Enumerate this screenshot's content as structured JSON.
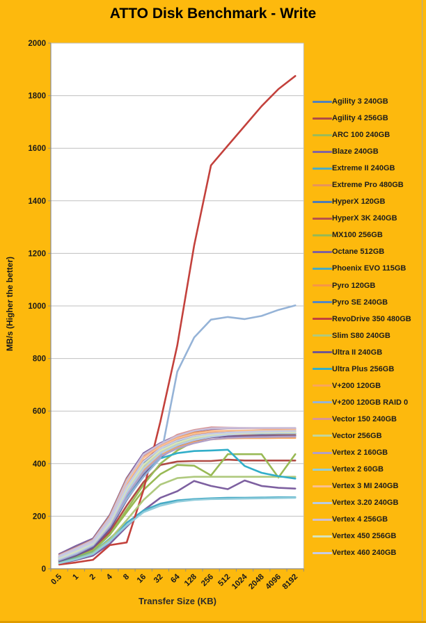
{
  "chart_data": {
    "type": "line",
    "title": "ATTO Disk Benchmark - Write",
    "xlabel": "Transfer Size (KB)",
    "ylabel": "MB/s (Higher the better)",
    "ylim": [
      0,
      2000
    ],
    "ytick_step": 200,
    "grid": true,
    "legend_position": "right",
    "plot_background": "#ffffff",
    "page_background": "#FDB90D",
    "gridline_color": "#bfbfbf",
    "axis_color": "#8c8c8c",
    "tick_label_color": "#1a1a1a",
    "categories": [
      "0.5",
      "1",
      "2",
      "4",
      "8",
      "16",
      "32",
      "64",
      "128",
      "256",
      "512",
      "1024",
      "2048",
      "4096",
      "8192"
    ],
    "series": [
      {
        "name": "Agility 3 240GB",
        "color": "#4F81BD",
        "values": [
          42,
          68,
          95,
          175,
          300,
          400,
          450,
          480,
          500,
          510,
          512,
          512,
          513,
          513,
          513
        ]
      },
      {
        "name": "Agility 4 256GB",
        "color": "#B04B45",
        "values": [
          30,
          48,
          75,
          140,
          240,
          330,
          395,
          408,
          410,
          410,
          415,
          412,
          412,
          412,
          412
        ]
      },
      {
        "name": "ARC 100 240GB",
        "color": "#9BBB59",
        "values": [
          25,
          42,
          68,
          130,
          225,
          320,
          400,
          450,
          485,
          505,
          515,
          518,
          519,
          520,
          520
        ]
      },
      {
        "name": "Blaze 240GB",
        "color": "#8064A2",
        "values": [
          56,
          87,
          115,
          205,
          345,
          440,
          478,
          508,
          524,
          532,
          535,
          535,
          535,
          535,
          535
        ]
      },
      {
        "name": "Extreme II 240GB",
        "color": "#4BACC6",
        "values": [
          31,
          52,
          82,
          155,
          270,
          365,
          430,
          465,
          490,
          505,
          510,
          512,
          513,
          514,
          515
        ]
      },
      {
        "name": "Extreme Pro 480GB",
        "color": "#E7945B",
        "values": [
          52,
          80,
          110,
          200,
          340,
          430,
          470,
          500,
          518,
          524,
          525,
          525,
          525,
          525,
          525
        ]
      },
      {
        "name": "HyperX 120GB",
        "color": "#4C7CB8",
        "values": [
          44,
          70,
          98,
          180,
          310,
          405,
          455,
          485,
          505,
          513,
          516,
          517,
          517,
          518,
          518
        ]
      },
      {
        "name": "HyperX 3K 240GB",
        "color": "#B8524B",
        "values": [
          46,
          73,
          102,
          185,
          315,
          410,
          460,
          490,
          508,
          516,
          519,
          520,
          521,
          522,
          522
        ]
      },
      {
        "name": "MX100 256GB",
        "color": "#98B954",
        "values": [
          26,
          44,
          70,
          130,
          215,
          300,
          360,
          395,
          392,
          355,
          436,
          436,
          436,
          347,
          436
        ]
      },
      {
        "name": "Octane 512GB",
        "color": "#7D60A0",
        "values": [
          20,
          33,
          50,
          95,
          160,
          222,
          270,
          295,
          334,
          315,
          303,
          336,
          315,
          308,
          305
        ]
      },
      {
        "name": "Phoenix EVO 115GB",
        "color": "#46AAC5",
        "values": [
          24,
          40,
          62,
          115,
          175,
          222,
          248,
          260,
          265,
          268,
          270,
          270,
          271,
          272,
          272
        ]
      },
      {
        "name": "Pyro 120GB",
        "color": "#F79646",
        "values": [
          38,
          62,
          92,
          170,
          295,
          390,
          445,
          475,
          495,
          505,
          508,
          509,
          509,
          509,
          509
        ]
      },
      {
        "name": "Pyro SE 240GB",
        "color": "#5287C6",
        "values": [
          40,
          65,
          95,
          172,
          300,
          395,
          448,
          478,
          498,
          508,
          512,
          514,
          514,
          515,
          515
        ]
      },
      {
        "name": "RevoDrive 350 480GB",
        "color": "#C3413C",
        "values": [
          16,
          24,
          34,
          90,
          100,
          300,
          560,
          850,
          1230,
          1535,
          1610,
          1685,
          1760,
          1825,
          1875
        ]
      },
      {
        "name": "Slim S80 240GB",
        "color": "#AFC97E",
        "values": [
          22,
          38,
          60,
          112,
          185,
          262,
          320,
          345,
          350,
          350,
          350,
          350,
          350,
          350,
          350
        ]
      },
      {
        "name": "Ultra II 240GB",
        "color": "#6F5691",
        "values": [
          29,
          50,
          80,
          150,
          262,
          355,
          425,
          462,
          488,
          500,
          504,
          505,
          506,
          506,
          506
        ]
      },
      {
        "name": "Ultra Plus 256GB",
        "color": "#31AEC9",
        "values": [
          34,
          58,
          92,
          168,
          280,
          370,
          420,
          440,
          448,
          450,
          453,
          391,
          365,
          352,
          343
        ]
      },
      {
        "name": "V+200 120GB",
        "color": "#F9A65B",
        "values": [
          36,
          60,
          90,
          165,
          285,
          375,
          432,
          462,
          482,
          492,
          496,
          497,
          497,
          498,
          498
        ]
      },
      {
        "name": "V+200 120GB RAID 0",
        "color": "#95B3D7",
        "values": [
          33,
          56,
          88,
          160,
          265,
          350,
          420,
          750,
          880,
          948,
          958,
          950,
          962,
          985,
          1002
        ]
      },
      {
        "name": "Vector 150 240GB",
        "color": "#D99694",
        "values": [
          48,
          76,
          105,
          190,
          330,
          428,
          470,
          510,
          528,
          538,
          537,
          536,
          534,
          532,
          530
        ]
      },
      {
        "name": "Vector 256GB",
        "color": "#C3D69B",
        "values": [
          39,
          64,
          94,
          172,
          298,
          392,
          446,
          476,
          496,
          506,
          514,
          517,
          518,
          519,
          520
        ]
      },
      {
        "name": "Vertex 2 160GB",
        "color": "#B1A0C7",
        "values": [
          35,
          59,
          90,
          162,
          280,
          368,
          428,
          458,
          478,
          492,
          498,
          500,
          501,
          502,
          503
        ]
      },
      {
        "name": "Vertex 2 60GB",
        "color": "#92CDDC",
        "values": [
          21,
          36,
          56,
          105,
          165,
          215,
          240,
          255,
          262,
          265,
          266,
          267,
          268,
          269,
          270
        ]
      },
      {
        "name": "Vertex 3 MI 240GB",
        "color": "#FAC090",
        "values": [
          47,
          74,
          103,
          188,
          325,
          422,
          466,
          496,
          514,
          522,
          525,
          526,
          527,
          527,
          528
        ]
      },
      {
        "name": "Vertex 3.20 240GB",
        "color": "#B8CCE4",
        "values": [
          37,
          61,
          92,
          168,
          290,
          382,
          440,
          470,
          490,
          502,
          510,
          514,
          516,
          517,
          517
        ]
      },
      {
        "name": "Vertex 4 256GB",
        "color": "#CCC0DA",
        "values": [
          50,
          78,
          108,
          195,
          335,
          435,
          475,
          505,
          525,
          534,
          536,
          536,
          536,
          536,
          536
        ]
      },
      {
        "name": "Vertex 450 256GB",
        "color": "#D8E4BC",
        "values": [
          41,
          66,
          96,
          174,
          302,
          396,
          450,
          480,
          499,
          509,
          515,
          517,
          518,
          519,
          519
        ]
      },
      {
        "name": "Vertex 460 240GB",
        "color": "#C6CCE5",
        "values": [
          45,
          72,
          100,
          182,
          312,
          408,
          458,
          488,
          506,
          514,
          518,
          520,
          522,
          523,
          524
        ]
      }
    ]
  }
}
